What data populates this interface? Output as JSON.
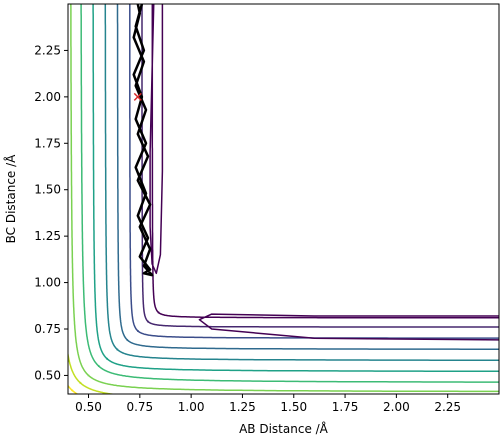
{
  "chart_data": {
    "type": "contour",
    "title": "",
    "xlabel": "AB Distance /Å",
    "ylabel": "BC Distance /Å",
    "xlim": [
      0.4,
      2.5
    ],
    "ylim": [
      0.4,
      2.5
    ],
    "xticks": [
      0.5,
      0.75,
      1.0,
      1.25,
      1.5,
      1.75,
      2.0,
      2.25
    ],
    "xtick_labels": [
      "0.50",
      "0.75",
      "1.00",
      "1.25",
      "1.50",
      "1.75",
      "2.00",
      "2.25"
    ],
    "yticks": [
      0.5,
      0.75,
      1.0,
      1.25,
      1.5,
      1.75,
      2.0,
      2.25
    ],
    "ytick_labels": [
      "0.50",
      "0.75",
      "1.00",
      "1.25",
      "1.50",
      "1.75",
      "2.00",
      "2.25"
    ],
    "colormap": "viridis",
    "grid": false,
    "legend": "none",
    "contour_levels": [
      {
        "level": 0,
        "color": "#440154",
        "asym": 0.81,
        "valley": 0.84
      },
      {
        "level": 1,
        "color": "#46286f",
        "asym": 0.76,
        "valley": 0.79
      },
      {
        "level": 2,
        "color": "#3b4d8a",
        "asym": 0.7,
        "valley": 0.74
      },
      {
        "level": 3,
        "color": "#2f6a8e",
        "asym": 0.64,
        "valley": 0.69
      },
      {
        "level": 4,
        "color": "#25848e",
        "asym": 0.58,
        "valley": 0.64
      },
      {
        "level": 5,
        "color": "#1fa187",
        "asym": 0.52,
        "valley": 0.59
      },
      {
        "level": 6,
        "color": "#3cbb75",
        "asym": 0.46,
        "valley": 0.55
      },
      {
        "level": 7,
        "color": "#7ad151",
        "asym": 0.41,
        "valley": 0.5
      },
      {
        "level": 8,
        "color": "#c2df23",
        "asym": 0.36,
        "valley": 0.46
      },
      {
        "level": 9,
        "color": "#fde725",
        "asym": 0.31,
        "valley": 0.42
      }
    ],
    "trajectory": {
      "color": "#000000",
      "points": [
        [
          0.76,
          2.5
        ],
        [
          0.73,
          2.38
        ],
        [
          0.77,
          2.25
        ],
        [
          0.72,
          2.12
        ],
        [
          0.76,
          2.0
        ],
        [
          0.73,
          1.88
        ],
        [
          0.78,
          1.75
        ],
        [
          0.73,
          1.62
        ],
        [
          0.78,
          1.48
        ],
        [
          0.74,
          1.36
        ],
        [
          0.79,
          1.24
        ],
        [
          0.75,
          1.14
        ],
        [
          0.8,
          1.07
        ],
        [
          0.77,
          1.05
        ],
        [
          0.81,
          1.04
        ],
        [
          0.77,
          1.09
        ],
        [
          0.8,
          1.18
        ],
        [
          0.75,
          1.3
        ],
        [
          0.8,
          1.42
        ],
        [
          0.74,
          1.55
        ],
        [
          0.79,
          1.68
        ],
        [
          0.74,
          1.8
        ],
        [
          0.78,
          1.93
        ],
        [
          0.73,
          2.06
        ],
        [
          0.77,
          2.19
        ],
        [
          0.72,
          2.32
        ],
        [
          0.75,
          2.45
        ],
        [
          0.74,
          2.5
        ]
      ]
    },
    "start_marker": {
      "x": 0.74,
      "y": 2.0,
      "symbol": "x",
      "color": "#d62728"
    }
  }
}
